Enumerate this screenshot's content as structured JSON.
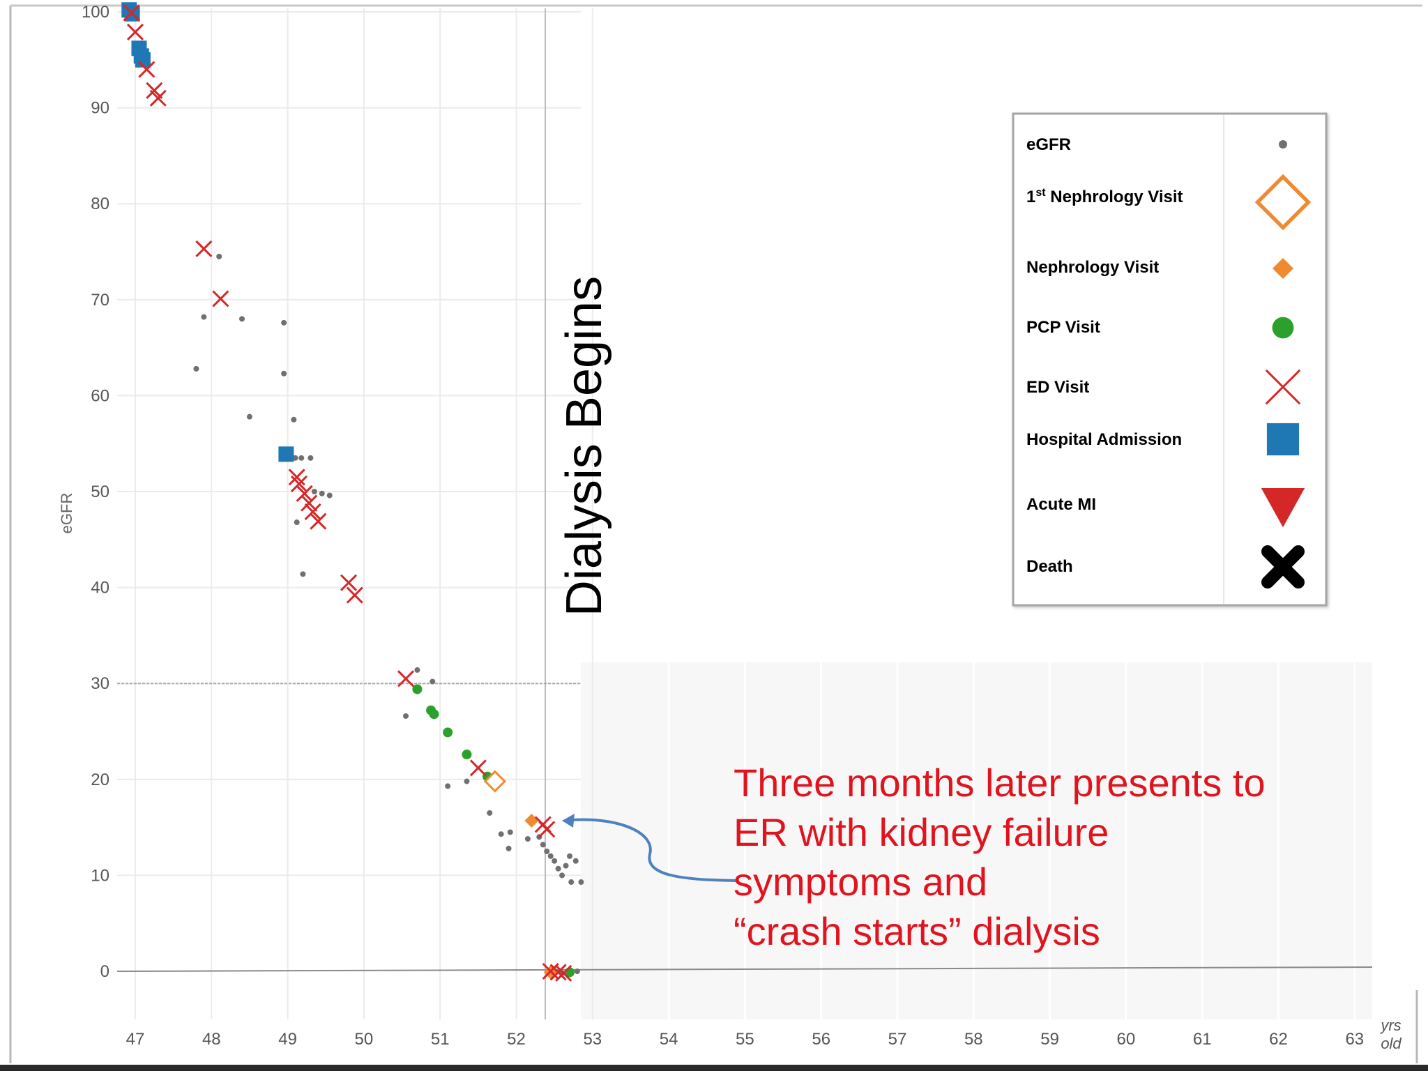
{
  "chart_data": {
    "type": "scatter",
    "xlabel": "",
    "x_units": "yrs old",
    "ylabel": "eGFR",
    "xlim": [
      46.8,
      63.2
    ],
    "ylim": [
      -5,
      100
    ],
    "x_ticks": [
      47,
      48,
      49,
      50,
      51,
      52,
      53,
      54,
      55,
      56,
      57,
      58,
      59,
      60,
      61,
      62,
      63
    ],
    "y_ticks": [
      100,
      90,
      80,
      70,
      60,
      50,
      40,
      30,
      20,
      10,
      0
    ],
    "reference_lines": {
      "vertical_x": 52.38,
      "horizontal_y": [
        30,
        0
      ]
    },
    "grid": true,
    "legend_position": "right",
    "legend": [
      {
        "key": "egfr",
        "label": "eGFR",
        "color": "#707070",
        "icon": "small-dot-icon"
      },
      {
        "key": "first_neph",
        "label": "1st Nephrology Visit",
        "label_main": "1",
        "label_sup": "st",
        "label_rest": " Nephrology Visit",
        "color": "#f08a30",
        "icon": "hollow-diamond-icon"
      },
      {
        "key": "neph",
        "label": "Nephrology Visit",
        "color": "#f08a30",
        "icon": "filled-diamond-icon"
      },
      {
        "key": "pcp",
        "label": "PCP Visit",
        "color": "#2ca02c",
        "icon": "circle-icon"
      },
      {
        "key": "ed",
        "label": "ED Visit",
        "color": "#d62728",
        "icon": "cross-x-icon"
      },
      {
        "key": "hosp",
        "label": "Hospital Admission",
        "color": "#1f77b4",
        "icon": "square-icon"
      },
      {
        "key": "ami",
        "label": "Acute MI",
        "color": "#d62728",
        "icon": "down-triangle-icon"
      },
      {
        "key": "death",
        "label": "Death",
        "color": "#000000",
        "icon": "bold-x-icon"
      }
    ],
    "series": [
      {
        "key": "egfr",
        "points": [
          [
            47.8,
            62.8
          ],
          [
            47.9,
            68.2
          ],
          [
            48.1,
            74.5
          ],
          [
            48.4,
            68.0
          ],
          [
            48.5,
            57.8
          ],
          [
            48.95,
            67.6
          ],
          [
            48.95,
            62.3
          ],
          [
            49.08,
            57.5
          ],
          [
            49.1,
            53.5
          ],
          [
            49.18,
            53.5
          ],
          [
            49.3,
            53.5
          ],
          [
            49.35,
            50.0
          ],
          [
            49.45,
            49.8
          ],
          [
            49.55,
            49.6
          ],
          [
            49.12,
            46.8
          ],
          [
            49.2,
            41.4
          ],
          [
            50.55,
            26.6
          ],
          [
            50.7,
            31.4
          ],
          [
            50.9,
            30.2
          ],
          [
            51.1,
            19.3
          ],
          [
            51.35,
            19.8
          ],
          [
            51.65,
            16.5
          ],
          [
            51.8,
            14.3
          ],
          [
            51.9,
            12.8
          ],
          [
            51.92,
            14.5
          ],
          [
            52.15,
            13.8
          ],
          [
            52.3,
            14.0
          ],
          [
            52.35,
            13.2
          ],
          [
            52.4,
            12.5
          ],
          [
            52.45,
            12.0
          ],
          [
            52.5,
            11.5
          ],
          [
            52.55,
            10.7
          ],
          [
            52.6,
            10.0
          ],
          [
            52.65,
            11.0
          ],
          [
            52.7,
            12.0
          ],
          [
            52.72,
            9.3
          ],
          [
            52.78,
            11.5
          ],
          [
            52.85,
            9.3
          ],
          [
            52.5,
            -0.1
          ],
          [
            52.6,
            -0.2
          ],
          [
            52.7,
            -0.1
          ],
          [
            52.8,
            0.0
          ]
        ]
      },
      {
        "key": "first_neph",
        "points": [
          [
            51.72,
            19.8
          ]
        ]
      },
      {
        "key": "neph",
        "points": [
          [
            52.2,
            15.7
          ],
          [
            52.45,
            -0.1
          ]
        ]
      },
      {
        "key": "pcp",
        "points": [
          [
            50.7,
            29.4
          ],
          [
            50.88,
            27.2
          ],
          [
            50.92,
            26.8
          ],
          [
            51.1,
            24.9
          ],
          [
            51.35,
            22.6
          ],
          [
            51.62,
            20.3
          ],
          [
            52.7,
            -0.1
          ]
        ]
      },
      {
        "key": "ed",
        "points": [
          [
            46.95,
            99.9
          ],
          [
            47.0,
            97.9
          ],
          [
            47.15,
            94.0
          ],
          [
            47.25,
            91.8
          ],
          [
            47.3,
            91.0
          ],
          [
            47.9,
            75.3
          ],
          [
            48.12,
            70.1
          ],
          [
            49.12,
            51.5
          ],
          [
            49.15,
            50.8
          ],
          [
            49.22,
            49.8
          ],
          [
            49.28,
            48.8
          ],
          [
            49.33,
            47.9
          ],
          [
            49.4,
            46.9
          ],
          [
            49.8,
            40.5
          ],
          [
            49.88,
            39.2
          ],
          [
            50.55,
            30.5
          ],
          [
            51.5,
            21.2
          ],
          [
            52.35,
            15.3
          ],
          [
            52.4,
            14.8
          ],
          [
            52.45,
            0.0
          ],
          [
            52.55,
            -0.1
          ],
          [
            52.62,
            -0.2
          ]
        ]
      },
      {
        "key": "hosp",
        "points": [
          [
            46.92,
            100.2
          ],
          [
            46.96,
            99.8
          ],
          [
            47.05,
            96.2
          ],
          [
            47.08,
            95.4
          ],
          [
            47.1,
            95.0
          ],
          [
            48.98,
            53.9
          ]
        ]
      }
    ]
  },
  "annotation": {
    "dialysis_label": "Dialysis Begins",
    "callout_lines": [
      "Three months later presents to",
      "ER with kidney failure",
      "symptoms and",
      "“crash starts” dialysis"
    ]
  }
}
